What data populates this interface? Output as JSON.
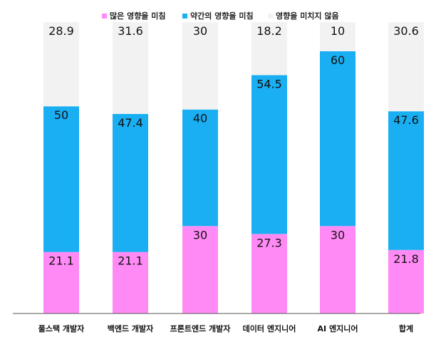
{
  "chart_data": {
    "type": "bar",
    "stacked": true,
    "categories": [
      "풀스택 개발자",
      "백엔드 개발자",
      "프론트엔드 개발자",
      "데이터 엔지니어",
      "AI 엔지니어",
      "합계"
    ],
    "series": [
      {
        "name": "많은 영향을 미침",
        "color": "#FF8AF5",
        "values": [
          21.1,
          21.1,
          30,
          27.3,
          30,
          21.8
        ],
        "labels": [
          "21.1",
          "21.1",
          "30",
          "27.3",
          "30",
          "21.8"
        ]
      },
      {
        "name": "약간의 영향을 미침",
        "color": "#1AAEF2",
        "values": [
          50,
          47.4,
          40,
          54.5,
          60,
          47.6
        ],
        "labels": [
          "50",
          "47.4",
          "40",
          "54.5",
          "60",
          "47.6"
        ]
      },
      {
        "name": "영향을 미치지 않음",
        "color": "#F2F2F2",
        "values": [
          28.9,
          31.6,
          30,
          18.2,
          10,
          30.6
        ],
        "labels": [
          "28.9",
          "31.6",
          "30",
          "18.2",
          "10",
          "30.6"
        ]
      }
    ],
    "ylim": [
      0,
      100
    ],
    "grid": false,
    "legend_position": "top"
  }
}
